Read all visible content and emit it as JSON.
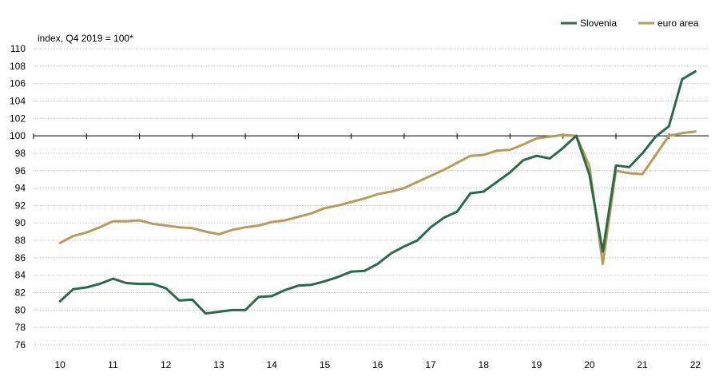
{
  "chart_data": {
    "type": "line",
    "ylabel": "index, Q4 2019 = 100*",
    "ylim": [
      76,
      110
    ],
    "yticks": [
      76,
      78,
      80,
      82,
      84,
      86,
      88,
      90,
      92,
      94,
      96,
      98,
      100,
      102,
      104,
      106,
      108,
      110
    ],
    "x_start": 2010,
    "x_end": 2022.25,
    "xtick_labels": [
      "10",
      "11",
      "12",
      "13",
      "14",
      "15",
      "16",
      "17",
      "18",
      "19",
      "20",
      "21",
      "22"
    ],
    "grid": "horizontal",
    "legend_position": "top-right",
    "reference_line": 100,
    "series": [
      {
        "name": "Slovenia",
        "color": "#2a6a4a",
        "values": [
          81.0,
          82.4,
          82.6,
          83.0,
          83.6,
          83.1,
          83.0,
          83.0,
          82.5,
          81.1,
          81.2,
          79.6,
          79.8,
          80.0,
          80.0,
          81.5,
          81.6,
          82.3,
          82.8,
          82.9,
          83.3,
          83.8,
          84.4,
          84.5,
          85.3,
          86.5,
          87.3,
          88.0,
          89.5,
          90.6,
          91.3,
          93.4,
          93.6,
          94.7,
          95.8,
          97.2,
          97.7,
          97.4,
          98.6,
          100.0,
          95.5,
          86.7,
          96.6,
          96.4,
          98.0,
          99.9,
          101.1,
          106.5,
          107.4
        ]
      },
      {
        "name": "euro area",
        "color": "#b89a5a",
        "values": [
          87.7,
          88.5,
          88.9,
          89.5,
          90.2,
          90.2,
          90.3,
          89.9,
          89.7,
          89.5,
          89.4,
          89.0,
          88.7,
          89.2,
          89.5,
          89.7,
          90.1,
          90.3,
          90.7,
          91.1,
          91.7,
          92.0,
          92.4,
          92.8,
          93.3,
          93.6,
          94.0,
          94.7,
          95.4,
          96.1,
          96.9,
          97.7,
          97.8,
          98.3,
          98.4,
          99.0,
          99.7,
          99.9,
          100.1,
          100.0,
          96.5,
          85.3,
          96.0,
          95.7,
          95.6,
          97.8,
          100.0,
          100.3,
          100.5
        ]
      }
    ]
  }
}
